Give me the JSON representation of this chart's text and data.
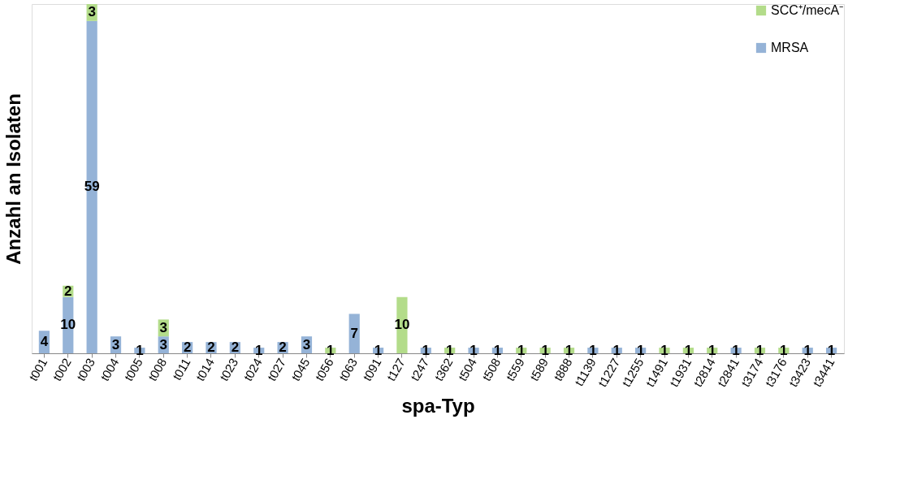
{
  "chart_data": {
    "type": "bar",
    "stacked": true,
    "data_labels": true,
    "legend": "top right",
    "grid": false,
    "xlabel": "spa-Typ",
    "ylabel": "Anzahl an Isolaten",
    "categories": [
      "t001",
      "t002",
      "t003",
      "t004",
      "t005",
      "t008",
      "t011",
      "t014",
      "t023",
      "t024",
      "t027",
      "t045",
      "t056",
      "t063",
      "t091",
      "t127",
      "t247",
      "t362",
      "t504",
      "t508",
      "t559",
      "t589",
      "t888",
      "t1139",
      "t1227",
      "t1255",
      "t1491",
      "t1931",
      "t2814",
      "t2841",
      "t3174",
      "t3176",
      "t3423",
      "t3441"
    ],
    "series": [
      {
        "name": "MRSA",
        "color": "#95b3d7",
        "values": [
          4,
          10,
          59,
          3,
          1,
          3,
          2,
          2,
          2,
          1,
          2,
          3,
          null,
          7,
          1,
          null,
          1,
          null,
          1,
          1,
          null,
          null,
          null,
          1,
          1,
          1,
          null,
          null,
          null,
          1,
          null,
          null,
          1,
          1
        ]
      },
      {
        "name": "SCC⁺/mecA⁻",
        "color": "#b3dc8a",
        "values": [
          null,
          2,
          3,
          null,
          null,
          3,
          null,
          null,
          null,
          null,
          null,
          null,
          1,
          null,
          null,
          10,
          null,
          1,
          null,
          null,
          1,
          1,
          1,
          null,
          null,
          null,
          1,
          1,
          1,
          null,
          1,
          1,
          null,
          null
        ]
      }
    ]
  }
}
